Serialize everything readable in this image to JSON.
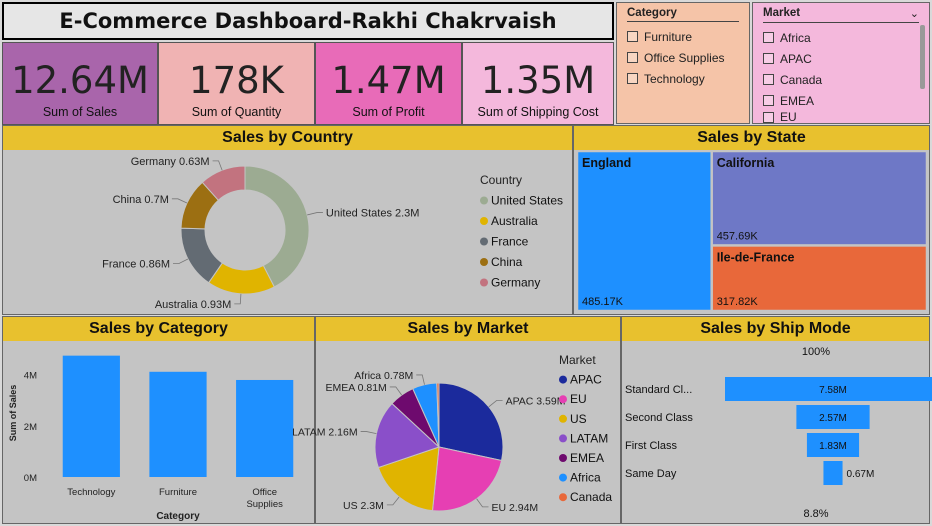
{
  "title": "E-Commerce Dashboard-Rakhi Chakrvaish",
  "colors": {
    "panel_header": "#e8c12e",
    "panel_bg": "#c4c4c4",
    "bar_blue": "#1e90ff"
  },
  "kpis": [
    {
      "value": "12.64M",
      "label": "Sum of Sales",
      "color": "#a965ab"
    },
    {
      "value": "178K",
      "label": "Sum of Quantity",
      "color": "#f0b3b3"
    },
    {
      "value": "1.47M",
      "label": "Sum of Profit",
      "color": "#e86bb8"
    },
    {
      "value": "1.35M",
      "label": "Sum of Shipping Cost",
      "color": "#f4b8dc"
    }
  ],
  "category_slicer": {
    "header": "Category",
    "items": [
      "Furniture",
      "Office Supplies",
      "Technology"
    ],
    "color": "#f5c4a8"
  },
  "market_slicer": {
    "header": "Market",
    "items": [
      "Africa",
      "APAC",
      "Canada",
      "EMEA",
      "EU"
    ],
    "color": "#f4b8dc"
  },
  "panels": {
    "country": "Sales by Country",
    "state": "Sales by State",
    "category": "Sales by Category",
    "market": "Sales by Market",
    "shipmode": "Sales by Ship Mode"
  },
  "chart_data": [
    {
      "type": "pie",
      "title": "Sales by Country",
      "legend_title": "Country",
      "slices": [
        {
          "label": "United States",
          "value": 2.3,
          "data_label": "United States 2.3M",
          "color": "#9cab92"
        },
        {
          "label": "Australia",
          "value": 0.93,
          "data_label": "Australia 0.93M",
          "color": "#e0b400"
        },
        {
          "label": "France",
          "value": 0.86,
          "data_label": "France 0.86M",
          "color": "#636b73"
        },
        {
          "label": "China",
          "value": 0.7,
          "data_label": "China 0.7M",
          "color": "#9c6f12"
        },
        {
          "label": "Germany",
          "value": 0.63,
          "data_label": "Germany 0.63M",
          "color": "#c2737f"
        }
      ]
    },
    {
      "type": "treemap",
      "title": "Sales by State",
      "items": [
        {
          "label": "England",
          "value": 485.17,
          "data_label": "485.17K",
          "color": "#1e90ff"
        },
        {
          "label": "California",
          "value": 457.69,
          "data_label": "457.69K",
          "color": "#6e78c6"
        },
        {
          "label": "Ile-de-France",
          "value": 317.82,
          "data_label": "317.82K",
          "color": "#e8683a"
        }
      ]
    },
    {
      "type": "bar",
      "title": "Sales by Category",
      "categories": [
        "Technology",
        "Furniture",
        "Office Supplies"
      ],
      "values": [
        4.74,
        4.11,
        3.79
      ],
      "xlabel": "Category",
      "ylabel": "Sum of Sales",
      "ylim": [
        0,
        5
      ],
      "yticks": [
        "0M",
        "2M",
        "4M"
      ],
      "ytick_values": [
        0,
        2,
        4
      ]
    },
    {
      "type": "pie",
      "title": "Sales by Market",
      "legend_title": "Market",
      "slices": [
        {
          "label": "APAC",
          "value": 3.59,
          "data_label": "APAC 3.59M",
          "color": "#1b2a9c"
        },
        {
          "label": "EU",
          "value": 2.94,
          "data_label": "EU 2.94M",
          "color": "#e63fb3"
        },
        {
          "label": "US",
          "value": 2.3,
          "data_label": "US 2.3M",
          "color": "#e0b400"
        },
        {
          "label": "LATAM",
          "value": 2.16,
          "data_label": "LATAM 2.16M",
          "color": "#8a4fc9"
        },
        {
          "label": "EMEA",
          "value": 0.81,
          "data_label": "EMEA 0.81M",
          "color": "#6e0a6e"
        },
        {
          "label": "Africa",
          "value": 0.78,
          "data_label": "Africa 0.78M",
          "color": "#1e90ff"
        },
        {
          "label": "Canada",
          "value": 0.07,
          "data_label": "",
          "color": "#e8683a"
        }
      ]
    },
    {
      "type": "funnel",
      "title": "Sales by Ship Mode",
      "top_label": "100%",
      "bottom_label": "8.8%",
      "categories": [
        "Standard Cl...",
        "Second Class",
        "First Class",
        "Same Day"
      ],
      "values": [
        7.58,
        2.57,
        1.83,
        0.67
      ],
      "data_labels": [
        "7.58M",
        "2.57M",
        "1.83M",
        "0.67M"
      ]
    }
  ]
}
